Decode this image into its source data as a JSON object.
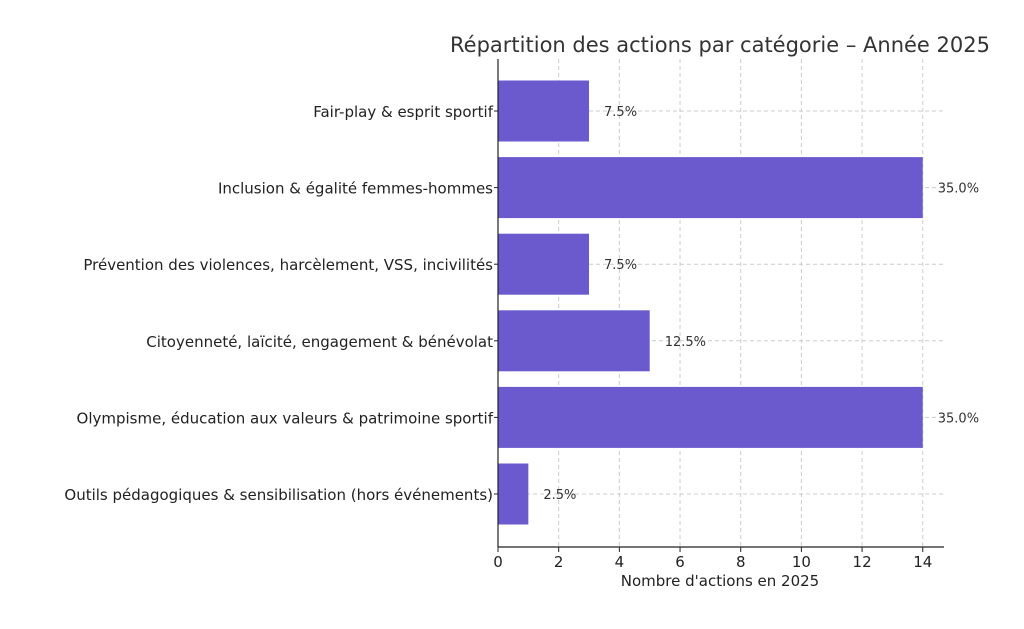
{
  "chart_data": {
    "type": "bar",
    "orientation": "horizontal",
    "title": "Répartition des actions par catégorie – Année 2025",
    "xlabel": "Nombre d'actions en 2025",
    "ylabel": "",
    "xlim": [
      0,
      14.7
    ],
    "xticks": [
      0,
      2,
      4,
      6,
      8,
      10,
      12,
      14
    ],
    "grid": true,
    "bar_color": "#6a5acd",
    "categories": [
      "Fair-play & esprit sportif",
      "Inclusion & égalité femmes-hommes",
      "Prévention des violences, harcèlement, VSS, incivilités",
      "Citoyenneté, laïcité, engagement & bénévolat",
      "Olympisme, éducation aux valeurs & patrimoine sportif",
      "Outils pédagogiques & sensibilisation (hors événements)"
    ],
    "values": [
      3,
      14,
      3,
      5,
      14,
      1
    ],
    "data_labels": [
      "7.5%",
      "35.0%",
      "7.5%",
      "12.5%",
      "35.0%",
      "2.5%"
    ]
  }
}
